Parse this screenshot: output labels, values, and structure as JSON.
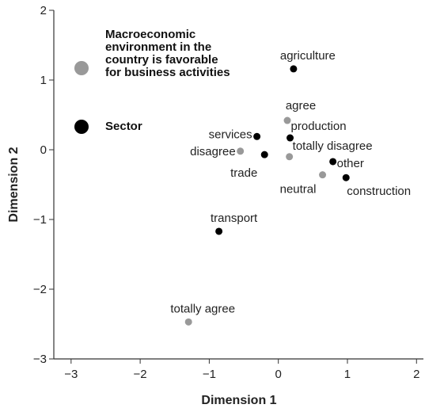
{
  "chart_data": {
    "type": "scatter",
    "xlabel": "Dimension 1",
    "ylabel": "Dimension 2",
    "xlim": [
      -3.25,
      2.1
    ],
    "ylim": [
      -3,
      2
    ],
    "xticks": [
      {
        "value": -3,
        "label": "−3"
      },
      {
        "value": -2,
        "label": "−2"
      },
      {
        "value": -1,
        "label": "−1"
      },
      0,
      1,
      2
    ],
    "yticks": [
      {
        "value": -3,
        "label": "−3"
      },
      {
        "value": -2,
        "label": "−2"
      },
      {
        "value": -1,
        "label": "−1"
      },
      0,
      1,
      2
    ],
    "series": [
      {
        "name": "Macroeconomic environment in the country is favorable for business activities",
        "color": "#999999",
        "labels": [
          "agree",
          "disagree",
          "totally disagree",
          "neutral",
          "totally agree"
        ],
        "x": [
          0.13,
          -0.55,
          0.16,
          0.64,
          -1.3
        ],
        "values": [
          0.42,
          -0.02,
          -0.1,
          -0.36,
          -2.47
        ]
      },
      {
        "name": "Sector",
        "color": "#000000",
        "labels": [
          "agriculture",
          "services",
          "production",
          "trade",
          "other",
          "construction",
          "transport"
        ],
        "x": [
          0.22,
          -0.31,
          0.17,
          -0.2,
          0.79,
          0.98,
          -0.86
        ],
        "values": [
          1.16,
          0.19,
          0.17,
          -0.07,
          -0.17,
          -0.4,
          -1.17
        ]
      }
    ]
  }
}
